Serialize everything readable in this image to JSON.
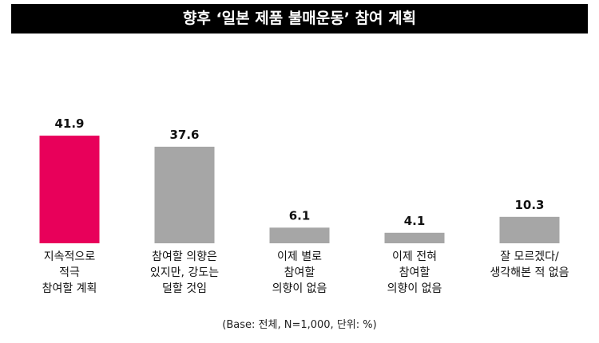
{
  "chart_data": {
    "type": "bar",
    "title": "향후 ‘일본 제품 불매운동’ 참여 계획",
    "categories": [
      "지속적으로\n적극\n참여할 계획",
      "참여할 의향은\n있지만, 강도는\n덜할 것임",
      "이제 별로\n참여할\n의향이 없음",
      "이제 전혀\n참여할\n의향이 없음",
      "잘 모르겠다/\n생각해본 적 없음"
    ],
    "values": [
      41.9,
      37.6,
      6.1,
      4.1,
      10.3
    ],
    "colors": [
      "#e8005a",
      "#a6a6a6",
      "#a6a6a6",
      "#a6a6a6",
      "#a6a6a6"
    ],
    "note": "(Base: 전체, N=1,000, 단위: %)"
  }
}
